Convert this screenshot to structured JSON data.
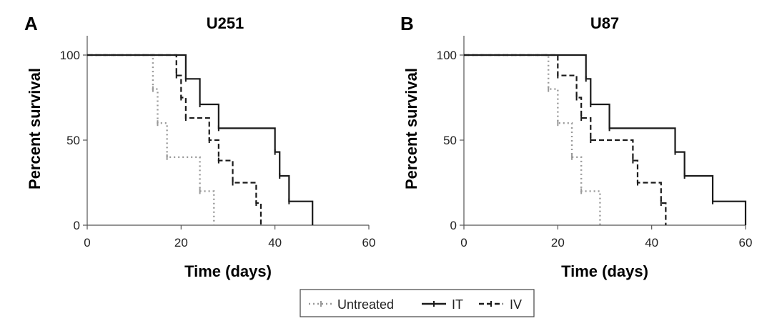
{
  "chart_data": [
    {
      "type": "line",
      "panel_letter": "A",
      "title": "U251",
      "xlabel": "Time (days)",
      "ylabel": "Percent survival",
      "xlim": [
        0,
        60
      ],
      "ylim": [
        0,
        100
      ],
      "xticks": [
        0,
        20,
        40,
        60
      ],
      "yticks": [
        0,
        50,
        100
      ],
      "grid": false,
      "series": [
        {
          "name": "Untreated",
          "style": "dotted",
          "color": "#9a9a9a",
          "x": [
            0,
            14,
            15,
            17,
            24,
            27
          ],
          "y": [
            100,
            80,
            60,
            40,
            20,
            0
          ]
        },
        {
          "name": "IT",
          "style": "solid",
          "color": "#1a1a1a",
          "x": [
            0,
            21,
            24,
            28,
            40,
            41,
            43,
            48
          ],
          "y": [
            100,
            86,
            71,
            57,
            43,
            29,
            14,
            0
          ]
        },
        {
          "name": "IV",
          "style": "dashed",
          "color": "#1a1a1a",
          "x": [
            0,
            19,
            20,
            21,
            26,
            28,
            31,
            36,
            37
          ],
          "y": [
            100,
            88,
            75,
            63,
            50,
            38,
            25,
            13,
            0
          ]
        }
      ]
    },
    {
      "type": "line",
      "panel_letter": "B",
      "title": "U87",
      "xlabel": "Time (days)",
      "ylabel": "Percent survival",
      "xlim": [
        0,
        60
      ],
      "ylim": [
        0,
        100
      ],
      "xticks": [
        0,
        20,
        40,
        60
      ],
      "yticks": [
        0,
        50,
        100
      ],
      "grid": false,
      "series": [
        {
          "name": "Untreated",
          "style": "dotted",
          "color": "#9a9a9a",
          "x": [
            0,
            18,
            20,
            23,
            25,
            29
          ],
          "y": [
            100,
            80,
            60,
            40,
            20,
            0
          ]
        },
        {
          "name": "IT",
          "style": "solid",
          "color": "#1a1a1a",
          "x": [
            0,
            26,
            27,
            31,
            45,
            47,
            53,
            60
          ],
          "y": [
            100,
            86,
            71,
            57,
            43,
            29,
            14,
            0
          ]
        },
        {
          "name": "IV",
          "style": "dashed",
          "color": "#1a1a1a",
          "x": [
            0,
            20,
            24,
            25,
            27,
            36,
            37,
            42,
            43
          ],
          "y": [
            100,
            88,
            75,
            63,
            50,
            38,
            25,
            13,
            0
          ]
        }
      ]
    }
  ],
  "legend": {
    "placement": "bottom-center",
    "entries": [
      {
        "label": "Untreated",
        "style": "dotted",
        "color": "#9a9a9a"
      },
      {
        "label": "IT",
        "style": "solid",
        "color": "#1a1a1a"
      },
      {
        "label": "IV",
        "style": "dashed",
        "color": "#1a1a1a"
      }
    ]
  }
}
